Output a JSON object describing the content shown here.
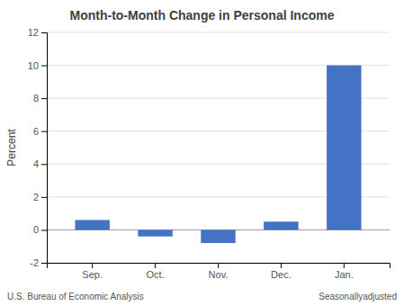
{
  "chart_data": {
    "type": "bar",
    "title": "Month-to-Month Change in Personal Income",
    "categories": [
      "Sep.",
      "Oct.",
      "Nov.",
      "Dec.",
      "Jan."
    ],
    "values": [
      0.6,
      -0.4,
      -0.8,
      0.5,
      10.0
    ],
    "color": "#4472C4",
    "ylabel": "Percent",
    "ylim": [
      -2,
      12
    ],
    "yticks": [
      -2,
      0,
      2,
      4,
      6,
      8,
      10,
      12
    ],
    "grid": true,
    "annotations": [
      "U.S. Bureau of Economic Analysis",
      "Seasonallyadjusted"
    ]
  }
}
